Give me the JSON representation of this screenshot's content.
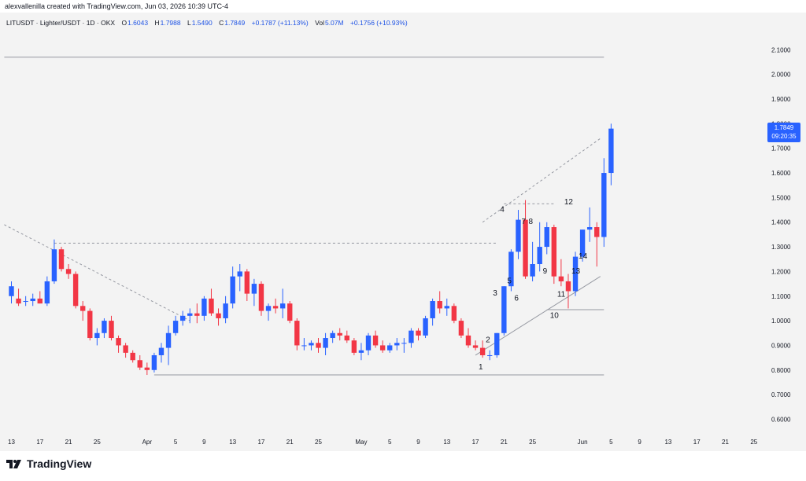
{
  "header": {
    "attribution": "alexvallenilla created with TradingView.com, Jun 03, 2026 10:39 UTC-4"
  },
  "legend": {
    "symbol": "LITUSDT · Lighter/USDT · 1D · OKX",
    "open_label": "O",
    "open": "1.6043",
    "high_label": "H",
    "high": "1.7988",
    "low_label": "L",
    "low": "1.5490",
    "close_label": "C",
    "close": "1.7849",
    "change": "+0.1787 (+11.13%)",
    "vol_label": "Vol",
    "vol": "5.07M",
    "vol_change": "+0.1756 (+10.93%)"
  },
  "price_tag": {
    "price": "1.7849",
    "countdown": "09:20:35"
  },
  "footer": {
    "brand": "TradingView"
  },
  "colors": {
    "up": "#2962ff",
    "down": "#f23645",
    "background": "#f3f3f3",
    "accent": "#2962ff"
  },
  "chart_data": {
    "type": "candlestick",
    "y_ticks": [
      "2.1000",
      "2.0000",
      "1.9000",
      "1.8000",
      "1.7000",
      "1.6000",
      "1.5000",
      "1.4000",
      "1.3000",
      "1.2000",
      "1.1000",
      "1.0000",
      "0.9000",
      "0.8000",
      "0.7000",
      "0.6000"
    ],
    "y_tick_values": [
      2.1,
      2.0,
      1.9,
      1.8,
      1.7,
      1.6,
      1.5,
      1.4,
      1.3,
      1.2,
      1.1,
      1.0,
      0.9,
      0.8,
      0.7,
      0.6
    ],
    "ylim": [
      0.56,
      2.2
    ],
    "x_ticks": [
      {
        "label": "13",
        "day": 0
      },
      {
        "label": "17",
        "day": 4
      },
      {
        "label": "21",
        "day": 8
      },
      {
        "label": "25",
        "day": 12
      },
      {
        "label": "Apr",
        "day": 19
      },
      {
        "label": "5",
        "day": 23
      },
      {
        "label": "9",
        "day": 27
      },
      {
        "label": "13",
        "day": 31
      },
      {
        "label": "17",
        "day": 35
      },
      {
        "label": "21",
        "day": 39
      },
      {
        "label": "25",
        "day": 43
      },
      {
        "label": "May",
        "day": 49
      },
      {
        "label": "5",
        "day": 53
      },
      {
        "label": "9",
        "day": 57
      },
      {
        "label": "13",
        "day": 61
      },
      {
        "label": "17",
        "day": 65
      },
      {
        "label": "21",
        "day": 69
      },
      {
        "label": "25",
        "day": 73
      },
      {
        "label": "Jun",
        "day": 80
      },
      {
        "label": "5",
        "day": 84
      },
      {
        "label": "9",
        "day": 88
      },
      {
        "label": "13",
        "day": 92
      },
      {
        "label": "17",
        "day": 96
      },
      {
        "label": "21",
        "day": 100
      },
      {
        "label": "25",
        "day": 104
      }
    ],
    "candles": [
      [
        1.1,
        1.16,
        1.07,
        1.14
      ],
      [
        1.09,
        1.13,
        1.06,
        1.07
      ],
      [
        1.08,
        1.1,
        1.06,
        1.08
      ],
      [
        1.08,
        1.11,
        1.06,
        1.09
      ],
      [
        1.09,
        1.12,
        1.07,
        1.07
      ],
      [
        1.07,
        1.18,
        1.06,
        1.16
      ],
      [
        1.16,
        1.33,
        1.15,
        1.29
      ],
      [
        1.29,
        1.3,
        1.2,
        1.21
      ],
      [
        1.21,
        1.23,
        1.17,
        1.19
      ],
      [
        1.19,
        1.2,
        1.05,
        1.06
      ],
      [
        1.06,
        1.08,
        1.0,
        1.04
      ],
      [
        1.04,
        1.05,
        0.92,
        0.93
      ],
      [
        0.93,
        0.97,
        0.9,
        0.95
      ],
      [
        0.95,
        1.01,
        0.93,
        1.0
      ],
      [
        1.0,
        1.02,
        0.92,
        0.93
      ],
      [
        0.93,
        0.94,
        0.87,
        0.9
      ],
      [
        0.9,
        0.91,
        0.85,
        0.87
      ],
      [
        0.87,
        0.88,
        0.83,
        0.84
      ],
      [
        0.84,
        0.86,
        0.8,
        0.81
      ],
      [
        0.81,
        0.83,
        0.78,
        0.8
      ],
      [
        0.8,
        0.87,
        0.79,
        0.86
      ],
      [
        0.86,
        0.91,
        0.83,
        0.89
      ],
      [
        0.89,
        0.98,
        0.82,
        0.95
      ],
      [
        0.95,
        1.02,
        0.94,
        1.0
      ],
      [
        1.0,
        1.04,
        0.98,
        1.02
      ],
      [
        1.02,
        1.05,
        0.99,
        1.03
      ],
      [
        1.03,
        1.07,
        0.99,
        1.02
      ],
      [
        1.02,
        1.1,
        1.0,
        1.09
      ],
      [
        1.09,
        1.13,
        1.02,
        1.03
      ],
      [
        1.03,
        1.05,
        0.98,
        1.01
      ],
      [
        1.01,
        1.1,
        0.99,
        1.07
      ],
      [
        1.07,
        1.22,
        1.05,
        1.18
      ],
      [
        1.18,
        1.23,
        1.12,
        1.2
      ],
      [
        1.2,
        1.21,
        1.08,
        1.11
      ],
      [
        1.11,
        1.17,
        1.06,
        1.15
      ],
      [
        1.15,
        1.16,
        1.02,
        1.04
      ],
      [
        1.04,
        1.07,
        1.0,
        1.06
      ],
      [
        1.06,
        1.09,
        1.03,
        1.05
      ],
      [
        1.05,
        1.13,
        1.01,
        1.07
      ],
      [
        1.07,
        1.08,
        0.99,
        1.0
      ],
      [
        1.0,
        1.01,
        0.88,
        0.9
      ],
      [
        0.9,
        0.93,
        0.88,
        0.9
      ],
      [
        0.9,
        0.92,
        0.88,
        0.91
      ],
      [
        0.91,
        0.93,
        0.87,
        0.89
      ],
      [
        0.89,
        0.95,
        0.86,
        0.93
      ],
      [
        0.93,
        0.96,
        0.91,
        0.95
      ],
      [
        0.95,
        0.97,
        0.92,
        0.94
      ],
      [
        0.94,
        0.96,
        0.91,
        0.92
      ],
      [
        0.92,
        0.93,
        0.86,
        0.87
      ],
      [
        0.87,
        0.91,
        0.84,
        0.88
      ],
      [
        0.88,
        0.95,
        0.86,
        0.94
      ],
      [
        0.94,
        0.96,
        0.89,
        0.9
      ],
      [
        0.9,
        0.92,
        0.87,
        0.88
      ],
      [
        0.88,
        0.91,
        0.87,
        0.9
      ],
      [
        0.9,
        0.93,
        0.88,
        0.91
      ],
      [
        0.91,
        0.93,
        0.87,
        0.91
      ],
      [
        0.91,
        0.97,
        0.89,
        0.96
      ],
      [
        0.96,
        0.97,
        0.92,
        0.94
      ],
      [
        0.94,
        1.02,
        0.93,
        1.01
      ],
      [
        1.01,
        1.09,
        0.98,
        1.08
      ],
      [
        1.08,
        1.12,
        1.03,
        1.05
      ],
      [
        1.05,
        1.09,
        1.02,
        1.06
      ],
      [
        1.06,
        1.07,
        0.99,
        1.0
      ],
      [
        1.0,
        1.01,
        0.93,
        0.94
      ],
      [
        0.94,
        0.97,
        0.89,
        0.9
      ],
      [
        0.9,
        0.92,
        0.88,
        0.89
      ],
      [
        0.89,
        0.92,
        0.85,
        0.86
      ],
      [
        0.86,
        0.88,
        0.84,
        0.86
      ],
      [
        0.86,
        0.95,
        0.85,
        0.95
      ],
      [
        0.95,
        1.14,
        0.94,
        1.14
      ],
      [
        1.14,
        1.29,
        1.12,
        1.28
      ],
      [
        1.28,
        1.45,
        1.25,
        1.41
      ],
      [
        1.41,
        1.49,
        1.17,
        1.18
      ],
      [
        1.18,
        1.32,
        1.16,
        1.23
      ],
      [
        1.23,
        1.4,
        1.2,
        1.3
      ],
      [
        1.3,
        1.4,
        1.27,
        1.38
      ],
      [
        1.38,
        1.39,
        1.15,
        1.18
      ],
      [
        1.18,
        1.25,
        1.14,
        1.16
      ],
      [
        1.16,
        1.19,
        1.05,
        1.12
      ],
      [
        1.12,
        1.28,
        1.1,
        1.26
      ],
      [
        1.26,
        1.37,
        1.24,
        1.37
      ],
      [
        1.37,
        1.46,
        1.32,
        1.38
      ],
      [
        1.38,
        1.4,
        1.22,
        1.34
      ],
      [
        1.34,
        1.66,
        1.3,
        1.6
      ],
      [
        1.6,
        1.8,
        1.55,
        1.78
      ]
    ],
    "wave_labels": [
      {
        "label": "1",
        "day": 65,
        "value": 0.815
      },
      {
        "label": "2",
        "day": 66,
        "value": 0.925
      },
      {
        "label": "3",
        "day": 67,
        "value": 1.115
      },
      {
        "label": "4",
        "day": 68,
        "value": 1.455
      },
      {
        "label": "5",
        "day": 69,
        "value": 1.165
      },
      {
        "label": "6",
        "day": 70,
        "value": 1.095
      },
      {
        "label": "7",
        "day": 71,
        "value": 1.405
      },
      {
        "label": "8",
        "day": 72,
        "value": 1.405
      },
      {
        "label": "9",
        "day": 74,
        "value": 1.205
      },
      {
        "label": "10",
        "day": 75,
        "value": 1.025
      },
      {
        "label": "11",
        "day": 76,
        "value": 1.11
      },
      {
        "label": "12",
        "day": 77,
        "value": 1.485
      },
      {
        "label": "13",
        "day": 78,
        "value": 1.205
      },
      {
        "label": "14",
        "day": 79,
        "value": 1.265
      }
    ],
    "horizontal_lines": [
      {
        "value": 2.07,
        "from_day": -1,
        "to_day": 83,
        "style": "solid"
      },
      {
        "value": 0.78,
        "from_day": 20,
        "to_day": 83,
        "style": "solid"
      },
      {
        "value": 1.315,
        "from_day": 6,
        "to_day": 68,
        "style": "dashed"
      },
      {
        "value": 1.475,
        "from_day": 69,
        "to_day": 76,
        "style": "dashed"
      },
      {
        "value": 1.045,
        "from_day": 75,
        "to_day": 83,
        "style": "solid"
      }
    ],
    "trend_lines": [
      {
        "from": [
          -1,
          1.39
        ],
        "to": [
          25,
          1.0
        ],
        "style": "dashed"
      },
      {
        "from": [
          66,
          1.4
        ],
        "to": [
          82.5,
          1.74
        ],
        "style": "dashed"
      },
      {
        "from": [
          65,
          0.86
        ],
        "to": [
          82.5,
          1.18
        ],
        "style": "solid"
      }
    ],
    "last_price": 1.7849
  }
}
